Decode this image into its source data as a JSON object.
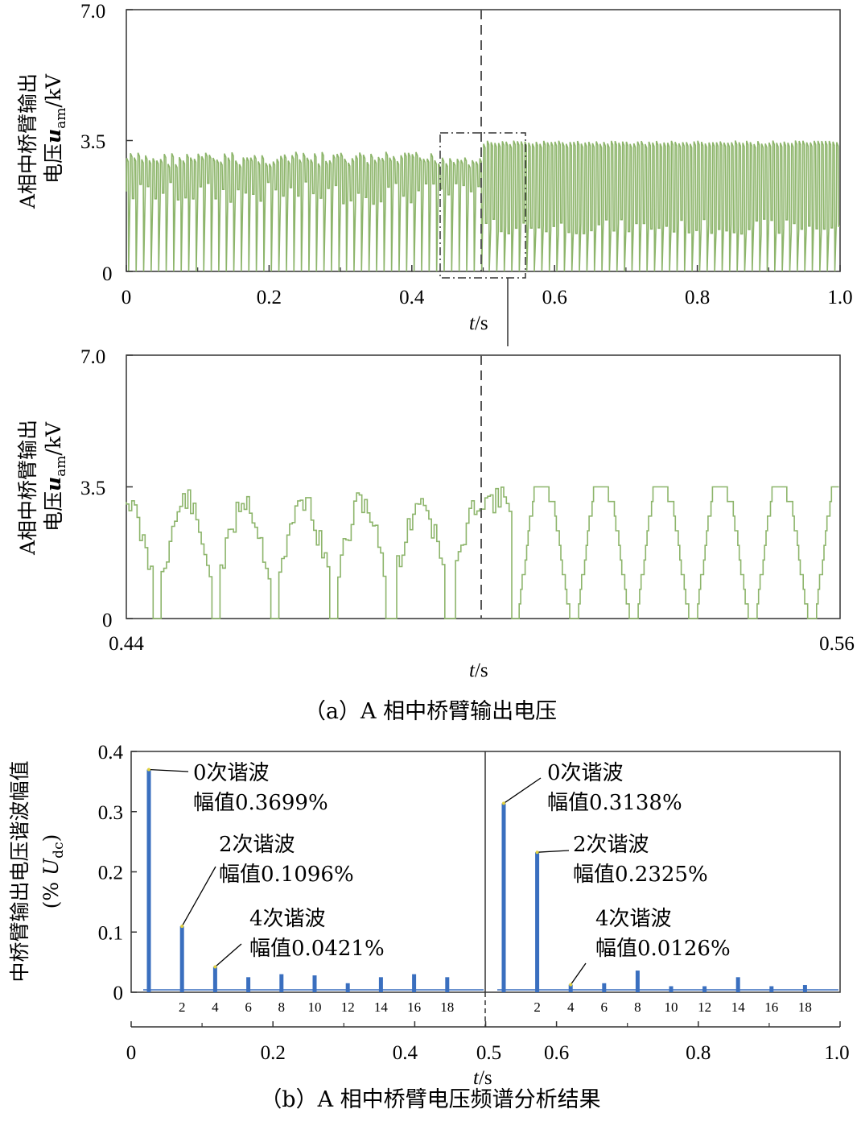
{
  "chart_data": [
    {
      "id": "a1",
      "type": "line",
      "ylabel_main": "A相中桥臂输出",
      "ylabel_sub_prefix": "电压",
      "ylabel_var": "u",
      "ylabel_subscript": "am",
      "ylabel_unit": "/kV",
      "xlabel_var": "t",
      "xlabel_unit": "/s",
      "xlim": [
        0,
        1.0
      ],
      "ylim": [
        0,
        7.0
      ],
      "x_ticks": [
        "0",
        "0.2",
        "0.4",
        "0.6",
        "0.8",
        "1.0"
      ],
      "y_ticks": [
        "7.0",
        "3.5",
        "0"
      ],
      "event_time": 0.5,
      "zoom_window": [
        0.44,
        0.56
      ],
      "series_color": "#8db56b",
      "segments": [
        {
          "t_start": 0.0,
          "t_end": 0.5,
          "max": 3.5,
          "min": 0,
          "typical_low": 1.8,
          "typical_high": 3.2
        },
        {
          "t_start": 0.5,
          "t_end": 1.0,
          "max": 3.5,
          "min": 0,
          "typical_low": 1.0,
          "typical_high": 3.5
        }
      ]
    },
    {
      "id": "a2",
      "type": "line",
      "ylabel_main": "A相中桥臂输出",
      "ylabel_sub_prefix": "电压",
      "ylabel_var": "u",
      "ylabel_subscript": "am",
      "ylabel_unit": "/kV",
      "xlabel_var": "t",
      "xlabel_unit": "/s",
      "xlim": [
        0.44,
        0.56
      ],
      "ylim": [
        0,
        7.0
      ],
      "x_ticks": [
        "0.44",
        "0.56"
      ],
      "y_ticks": [
        "7.0",
        "3.5",
        "0"
      ],
      "event_time": 0.5,
      "series_color": "#8db56b",
      "period_before": 0.01,
      "period_after": 0.01,
      "minima_before": [
        0.4449,
        0.4548,
        0.4647,
        0.4746,
        0.4844,
        0.4943
      ],
      "minima_after": [
        0.5051,
        0.515,
        0.5248,
        0.5346,
        0.5445,
        0.5543
      ]
    },
    {
      "id": "b",
      "type": "bar",
      "ylabel_main": "中桥臂输出电压谐波幅值",
      "ylabel_paren_open": "(%",
      "ylabel_var": "U",
      "ylabel_subscript": "dc",
      "ylabel_paren_close": ")",
      "xlabel_var": "t",
      "xlabel_unit": "/s",
      "xlim": [
        0,
        1.0
      ],
      "ylim": [
        0,
        0.4
      ],
      "x_ticks": [
        "0",
        "0.2",
        "0.4",
        "0.5",
        "0.6",
        "0.8",
        "1.0"
      ],
      "y_ticks": [
        "0.4",
        "0.3",
        "0.2",
        "0.1",
        "0"
      ],
      "harmonic_ticks": [
        "2",
        "4",
        "6",
        "8",
        "10",
        "12",
        "14",
        "16",
        "18"
      ],
      "bar_color": "#3a6fbf",
      "panels": [
        {
          "name": "before",
          "harmonics": [
            0,
            2,
            4,
            6,
            8,
            10,
            12,
            14,
            16,
            18
          ],
          "values": [
            0.3699,
            0.1096,
            0.0421,
            0.025,
            0.03,
            0.028,
            0.015,
            0.025,
            0.03,
            0.025
          ]
        },
        {
          "name": "after",
          "harmonics": [
            0,
            2,
            4,
            6,
            8,
            10,
            12,
            14,
            16,
            18
          ],
          "values": [
            0.3138,
            0.2325,
            0.0126,
            0.015,
            0.036,
            0.01,
            0.01,
            0.025,
            0.01,
            0.012
          ]
        }
      ],
      "annotations": [
        {
          "panel": 0,
          "order_label": "0次谐波",
          "value_label": "幅值0.3699%"
        },
        {
          "panel": 0,
          "order_label": "2次谐波",
          "value_label": "幅值0.1096%"
        },
        {
          "panel": 0,
          "order_label": "4次谐波",
          "value_label": "幅值0.0421%"
        },
        {
          "panel": 1,
          "order_label": "0次谐波",
          "value_label": "幅值0.3138%"
        },
        {
          "panel": 1,
          "order_label": "2次谐波",
          "value_label": "幅值0.2325%"
        },
        {
          "panel": 1,
          "order_label": "4次谐波",
          "value_label": "幅值0.0126%"
        }
      ]
    }
  ],
  "captions": {
    "a": "（a）A 相中桥臂输出电压",
    "b": "（b）A 相中桥臂电压频谱分析结果"
  }
}
